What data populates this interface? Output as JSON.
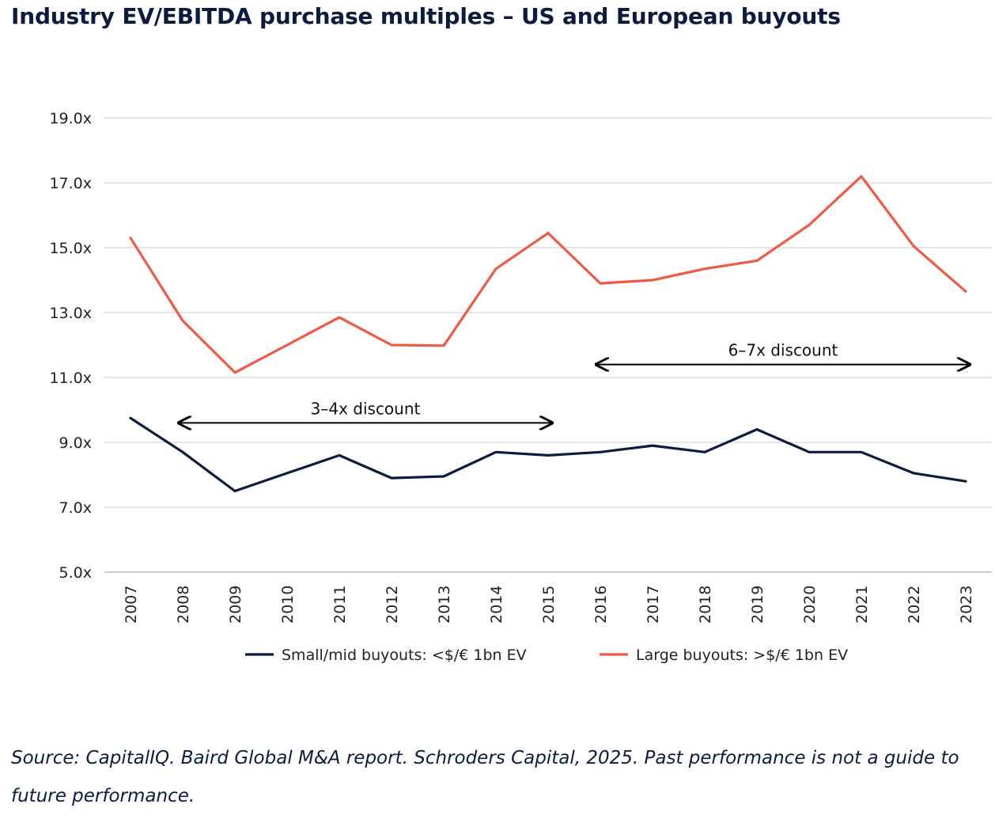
{
  "title": "Industry EV/EBITDA purchase multiples – US and European buyouts",
  "source": "Source: CapitalIQ. Baird Global M&A report. Schroders Capital, 2025. Past performance is not a guide to future performance.",
  "colors": {
    "text": "#0d1b3e",
    "grid": "#c8c8c8",
    "small_mid": "#0d1b3e",
    "large": "#ee5a45"
  },
  "chart_data": {
    "type": "line",
    "title": "Industry EV/EBITDA purchase multiples – US and European buyouts",
    "xlabel": "",
    "ylabel": "",
    "ylim": [
      5,
      19
    ],
    "grid": true,
    "legend_position": "bottom",
    "categories": [
      "2007",
      "2008",
      "2009",
      "2010",
      "2011",
      "2012",
      "2013",
      "2014",
      "2015",
      "2016",
      "2017",
      "2018",
      "2019",
      "2020",
      "2021",
      "2022",
      "2023"
    ],
    "y_ticks": [
      {
        "value": 19,
        "label": "19.0x"
      },
      {
        "value": 17,
        "label": "17.0x"
      },
      {
        "value": 15,
        "label": "15.0x"
      },
      {
        "value": 13,
        "label": "13.0x"
      },
      {
        "value": 11,
        "label": "11.0x"
      },
      {
        "value": 9,
        "label": "9.0x"
      },
      {
        "value": 7,
        "label": "7.0x"
      },
      {
        "value": 5,
        "label": "5.0x"
      }
    ],
    "series": [
      {
        "name": "Small/mid buyouts: <$/€ 1bn EV",
        "color": "#0d1b3e",
        "values": [
          9.75,
          8.7,
          7.5,
          8.05,
          8.6,
          7.9,
          7.95,
          8.7,
          8.6,
          8.7,
          8.9,
          8.7,
          9.4,
          8.7,
          8.7,
          8.05,
          7.8
        ]
      },
      {
        "name": "Large buyouts: >$/€ 1bn EV",
        "color": "#ee5a45",
        "values": [
          15.3,
          12.75,
          11.15,
          12.0,
          12.85,
          12.0,
          11.98,
          14.35,
          15.45,
          13.9,
          14.0,
          14.35,
          14.6,
          15.7,
          17.2,
          15.05,
          13.65
        ]
      }
    ],
    "annotations": [
      {
        "text": "3–4x discount",
        "from": "2008",
        "to": "2015",
        "y": 9.6
      },
      {
        "text": "6–7x discount",
        "from": "2016",
        "to": "2023",
        "y": 11.4
      }
    ]
  }
}
